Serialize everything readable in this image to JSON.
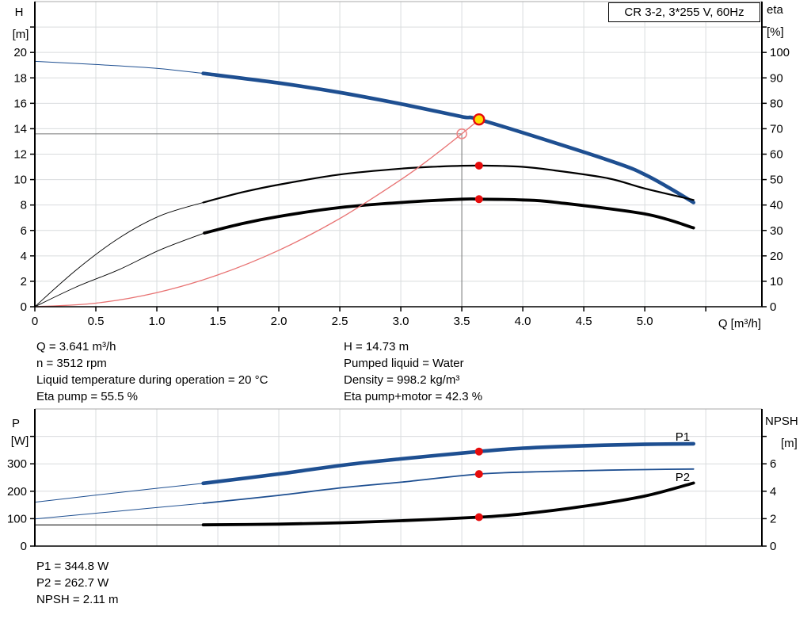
{
  "title_box": {
    "label": "CR 3-2, 3*255 V, 60Hz"
  },
  "results": {
    "top_left": [
      "Q = 3.641 m³/h",
      "n = 3512 rpm",
      "Liquid temperature during operation = 20 °C",
      "Eta pump = 55.5 %"
    ],
    "top_right": [
      "H = 14.73 m",
      "Pumped liquid = Water",
      "Density = 998.2 kg/m³",
      "Eta pump+motor = 42.3 %"
    ],
    "bottom": [
      "P1 = 344.8 W",
      "P2 = 262.7 W",
      "NPSH = 2.11 m"
    ]
  },
  "colors": {
    "curve_blue": "#1e4f91",
    "curve_black": "#000000",
    "system_red": "#e87272",
    "dot_red": "#e60c0c",
    "duty_yellow": "#ffdd00",
    "requested_ring": "#ee8888",
    "crosshair_gray": "#777777",
    "grid": "#d9dcde",
    "border_top": "#a8a8a8"
  },
  "chart_data": [
    {
      "id": "qh-eta-chart",
      "type": "line",
      "x_axis": {
        "label": "Q [m³/h]",
        "min": 0,
        "max": 5.96,
        "tick": 0.5,
        "tick_labels": [
          "0",
          "0.5",
          "1.0",
          "1.5",
          "2.0",
          "2.5",
          "3.0",
          "3.5",
          "4.0",
          "4.5",
          "5.0",
          ""
        ]
      },
      "left_axis": {
        "label": "H",
        "unit": "[m]",
        "min": 0,
        "max": 24,
        "tick": 2,
        "tick_labels": [
          "0",
          "2",
          "4",
          "6",
          "8",
          "10",
          "12",
          "14",
          "16",
          "18",
          "20",
          ""
        ]
      },
      "right_axis": {
        "label": "eta",
        "unit": "[%]",
        "min": 0,
        "max": 120,
        "tick": 10,
        "tick_labels": [
          "0",
          "10",
          "20",
          "30",
          "40",
          "50",
          "60",
          "70",
          "80",
          "90",
          "100",
          ""
        ]
      },
      "series": [
        {
          "name": "head-curve",
          "axis": "left",
          "color": "#1e4f91",
          "width": 4.6,
          "thin_width": 1,
          "thin_until": 1.38,
          "points": [
            [
              0,
              19.3
            ],
            [
              0.5,
              19.05
            ],
            [
              1.0,
              18.75
            ],
            [
              1.38,
              18.35
            ],
            [
              2.0,
              17.6
            ],
            [
              2.5,
              16.85
            ],
            [
              3.0,
              15.95
            ],
            [
              3.5,
              14.95
            ],
            [
              3.641,
              14.73
            ],
            [
              4.26,
              12.9
            ],
            [
              4.8,
              11.2
            ],
            [
              5.0,
              10.4
            ],
            [
              5.2,
              9.35
            ],
            [
              5.4,
              8.2
            ]
          ]
        },
        {
          "name": "eta-pump-curve",
          "axis": "right",
          "color": "#000000",
          "width": 2.2,
          "thin_width": 0.9,
          "thin_until": 1.38,
          "points": [
            [
              0,
              0
            ],
            [
              0.34,
              14.5
            ],
            [
              0.69,
              27
            ],
            [
              1.03,
              35.8
            ],
            [
              1.38,
              41
            ],
            [
              1.7,
              45
            ],
            [
              2.0,
              48
            ],
            [
              2.5,
              52
            ],
            [
              3.0,
              54.3
            ],
            [
              3.3,
              55.1
            ],
            [
              3.641,
              55.5
            ],
            [
              4.0,
              55
            ],
            [
              4.26,
              53.6
            ],
            [
              4.7,
              50.5
            ],
            [
              5.0,
              46.5
            ],
            [
              5.4,
              42
            ]
          ]
        },
        {
          "name": "eta-pump-motor-curve",
          "axis": "right",
          "color": "#000000",
          "width": 3.8,
          "thin_width": 0.9,
          "thin_until": 1.39,
          "points": [
            [
              0,
              0
            ],
            [
              0.34,
              7.8
            ],
            [
              0.69,
              14.6
            ],
            [
              1.03,
              22.4
            ],
            [
              1.39,
              29
            ],
            [
              1.7,
              32.7
            ],
            [
              2.0,
              35.5
            ],
            [
              2.5,
              39
            ],
            [
              3.0,
              41
            ],
            [
              3.5,
              42.3
            ],
            [
              3.641,
              42.3
            ],
            [
              4.0,
              42
            ],
            [
              4.26,
              41.1
            ],
            [
              5.0,
              36.5
            ],
            [
              5.4,
              31
            ]
          ]
        },
        {
          "name": "system-curve",
          "axis": "left",
          "color": "#e87272",
          "width": 1.3,
          "points": [
            [
              0,
              0
            ],
            [
              0.5,
              0.28
            ],
            [
              1.0,
              1.11
            ],
            [
              1.5,
              2.5
            ],
            [
              2.0,
              4.44
            ],
            [
              2.5,
              6.94
            ],
            [
              3.0,
              9.99
            ],
            [
              3.25,
              11.72
            ],
            [
              3.5,
              13.6
            ],
            [
              3.641,
              14.72
            ]
          ]
        }
      ],
      "crosshair": {
        "q": 3.5,
        "v": 13.6,
        "axis": "left"
      },
      "requested_duty_point": {
        "q": 3.5,
        "v": 13.6,
        "axis": "left"
      },
      "duty_point": {
        "q": 3.641,
        "v": 14.73,
        "axis": "left"
      },
      "dots": [
        {
          "axis": "right",
          "q": 3.641,
          "v": 55.5
        },
        {
          "axis": "right",
          "q": 3.641,
          "v": 42.3
        }
      ]
    },
    {
      "id": "power-npsh-chart",
      "type": "line",
      "x_axis": {
        "label": "",
        "min": 0,
        "max": 5.96,
        "tick": 0.5,
        "tick_labels": []
      },
      "left_axis": {
        "label": "P",
        "unit": "[W]",
        "min": 0,
        "max": 500,
        "tick": 100,
        "tick_labels": [
          "0",
          "100",
          "200",
          "300",
          ""
        ]
      },
      "right_axis": {
        "label": "NPSH",
        "unit": "[m]",
        "min": 0,
        "max": 10,
        "tick": 2,
        "tick_labels": [
          "0",
          "2",
          "4",
          "6",
          ""
        ]
      },
      "series": [
        {
          "name": "p1-curve",
          "axis": "left",
          "color": "#1e4f91",
          "width": 4.6,
          "thin_width": 1,
          "thin_until": 1.38,
          "points": [
            [
              0,
              160
            ],
            [
              0.7,
              196
            ],
            [
              1.38,
              229
            ],
            [
              2.0,
              263
            ],
            [
              2.54,
              296
            ],
            [
              3.0,
              318
            ],
            [
              3.641,
              344.8
            ],
            [
              4.0,
              357
            ],
            [
              4.5,
              366
            ],
            [
              5.0,
              371
            ],
            [
              5.4,
              373
            ]
          ]
        },
        {
          "name": "p2-curve",
          "axis": "left",
          "color": "#1e4f91",
          "width": 1.8,
          "thin_width": 1,
          "thin_until": 1.38,
          "points": [
            [
              0,
              99
            ],
            [
              0.7,
              128
            ],
            [
              1.38,
              156
            ],
            [
              2.0,
              185
            ],
            [
              2.54,
              214
            ],
            [
              3.0,
              233
            ],
            [
              3.641,
              262.7
            ],
            [
              4.2,
              272
            ],
            [
              4.7,
              277
            ],
            [
              5.0,
              279
            ],
            [
              5.4,
              281
            ]
          ]
        },
        {
          "name": "npsh-curve",
          "axis": "right",
          "color": "#000000",
          "width": 3.8,
          "thin_width": 1,
          "thin_until": 1.38,
          "points": [
            [
              0,
              1.55
            ],
            [
              1.38,
              1.55
            ],
            [
              2.0,
              1.6
            ],
            [
              2.5,
              1.7
            ],
            [
              3.0,
              1.85
            ],
            [
              3.641,
              2.11
            ],
            [
              4.0,
              2.35
            ],
            [
              4.5,
              2.9
            ],
            [
              5.0,
              3.65
            ],
            [
              5.4,
              4.6
            ]
          ]
        }
      ],
      "dots": [
        {
          "axis": "left",
          "q": 3.641,
          "v": 344.8
        },
        {
          "axis": "left",
          "q": 3.641,
          "v": 262.7
        },
        {
          "axis": "right",
          "q": 3.641,
          "v": 2.11
        }
      ],
      "labels": [
        {
          "text": "P1",
          "q": 5.31,
          "v": 385,
          "color": "#1e4f91"
        },
        {
          "text": "P2",
          "q": 5.31,
          "v": 237,
          "color": "#1e4f91"
        }
      ]
    }
  ]
}
